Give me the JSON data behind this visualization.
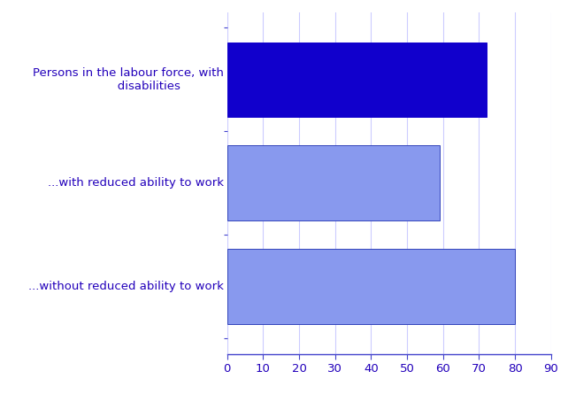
{
  "categories": [
    "...without reduced ability to work",
    "...with reduced ability to work",
    "Persons in the labour force, with\n        disabilities"
  ],
  "values": [
    80,
    59,
    72
  ],
  "bar_colors": [
    "#8899ee",
    "#8899ee",
    "#1100cc"
  ],
  "bar_edgecolors": [
    "#3344bb",
    "#3344bb",
    "#1100cc"
  ],
  "label_color": "#2200bb",
  "axis_color": "#4444cc",
  "grid_color": "#ccccff",
  "xlim": [
    0,
    90
  ],
  "xticks": [
    0,
    10,
    20,
    30,
    40,
    50,
    60,
    70,
    80,
    90
  ],
  "bar_height": 0.72,
  "figsize": [
    6.42,
    4.54
  ],
  "dpi": 100,
  "font_size": 9.5,
  "label_texts": [
    "...without reduced ability to work",
    "...with reduced ability to work",
    "Persons in the labour force, with\n           disabilities"
  ]
}
